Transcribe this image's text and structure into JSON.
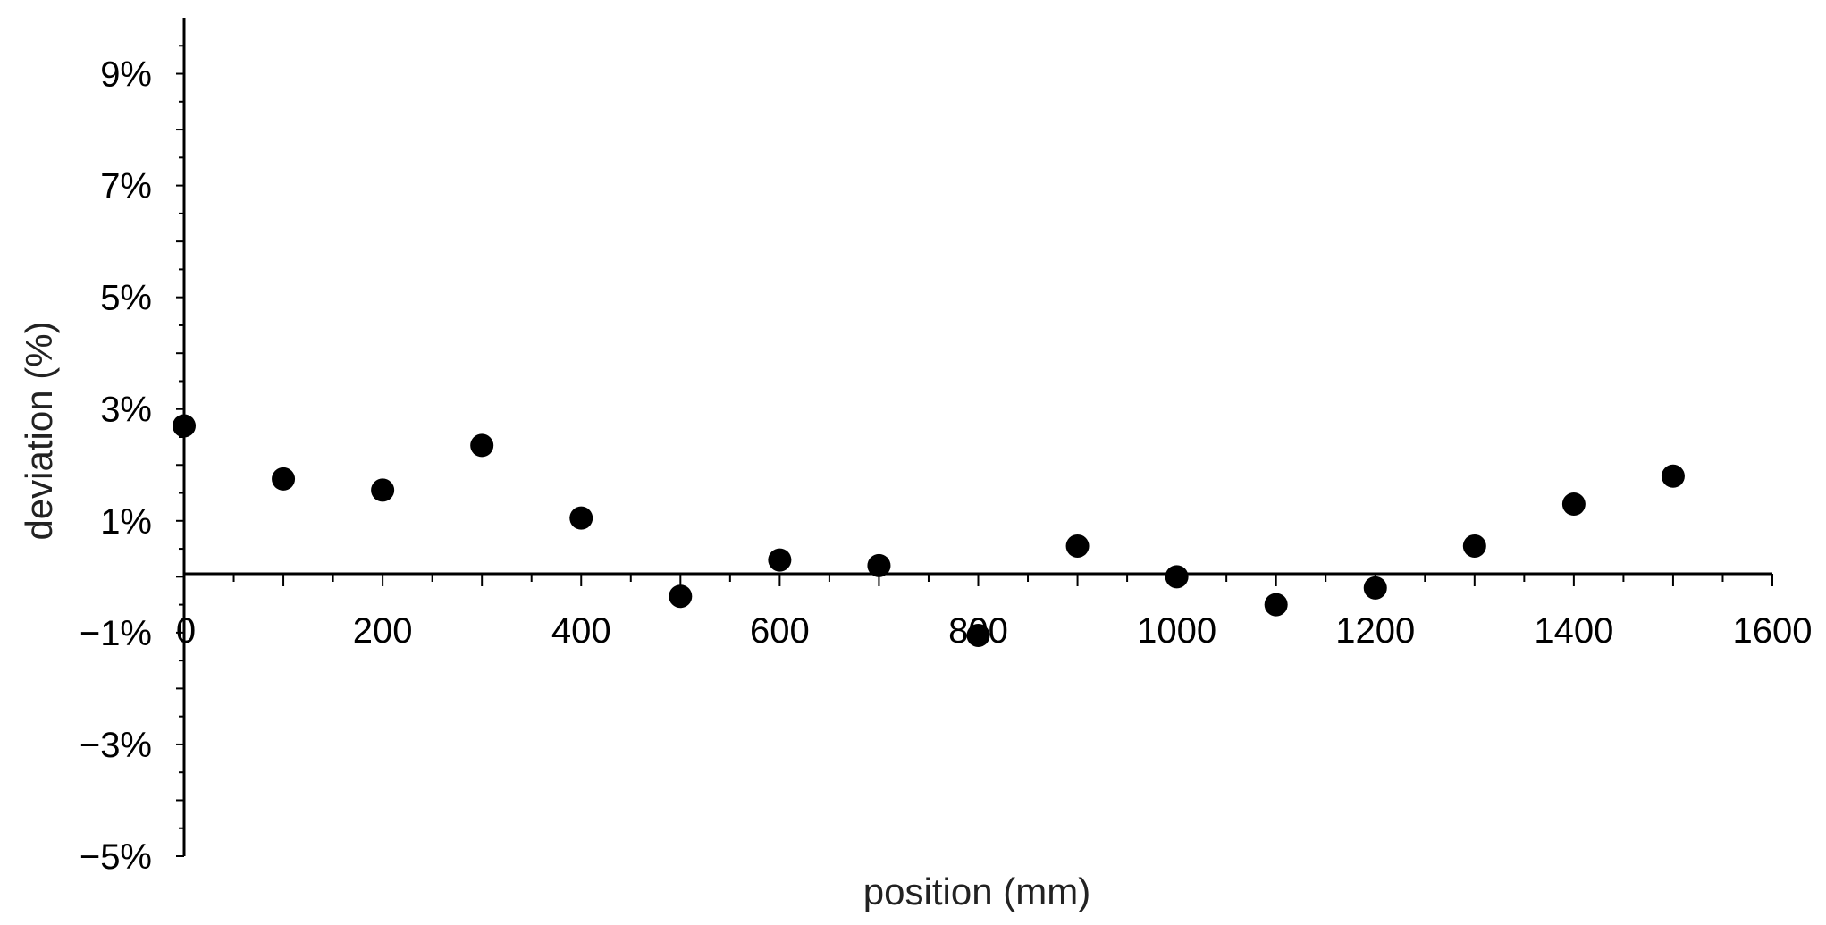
{
  "chart_data": {
    "type": "scatter",
    "title": "",
    "xlabel": "position (mm)",
    "ylabel": "deviation (%)",
    "xlim": [
      0,
      1600
    ],
    "ylim": [
      -5,
      10
    ],
    "x_ticks": [
      0,
      200,
      400,
      600,
      800,
      1000,
      1200,
      1400,
      1600
    ],
    "x_tick_labels": [
      "0",
      "200",
      "400",
      "600",
      "800",
      "1000",
      "1200",
      "1400",
      "1600"
    ],
    "y_ticks": [
      -5,
      -3,
      -1,
      1,
      3,
      5,
      7,
      9
    ],
    "y_tick_labels": [
      "−5%",
      "−3%",
      "−1%",
      "1%",
      "3%",
      "5%",
      "7%",
      "9%"
    ],
    "grid": false,
    "legend": "none",
    "marker_color": "#000000",
    "series": [
      {
        "x": [
          0,
          100,
          200,
          300,
          400,
          500,
          600,
          700,
          800,
          900,
          1000,
          1100,
          1200,
          1300,
          1400,
          1500
        ],
        "y": [
          2.7,
          1.75,
          1.55,
          2.35,
          1.05,
          -0.35,
          0.3,
          0.2,
          -1.05,
          0.55,
          0.0,
          -0.5,
          -0.2,
          0.55,
          1.3,
          1.8
        ]
      }
    ]
  }
}
